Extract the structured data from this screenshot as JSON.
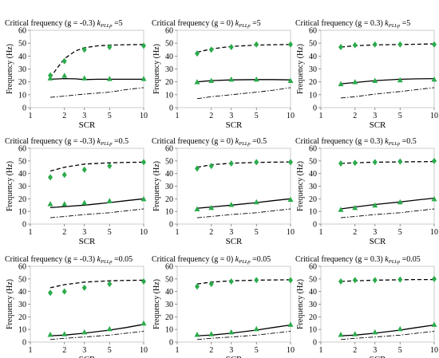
{
  "common": {
    "xlabel": "SCR",
    "ylabel": "Frequency (Hz)",
    "xticks": [
      1,
      2,
      3,
      5,
      10
    ],
    "yticks": [
      0,
      10,
      20,
      30,
      40,
      50,
      60
    ],
    "xlim": [
      1,
      10
    ],
    "ylim": [
      0,
      60
    ],
    "xscale": "log",
    "x": [
      1.5,
      2,
      3,
      5,
      10
    ],
    "colors": {
      "marker": "#2bab4c",
      "line": "#000000"
    }
  },
  "chart_data": [
    {
      "type": "line",
      "title_prefix": "Critical frequency (g = -0.3) ",
      "title_k": "k",
      "title_sub": "PLLp",
      "title_suffix": " =5",
      "xlabel": "SCR",
      "ylabel": "Frequency (Hz)",
      "series": [
        {
          "style": "dashed",
          "x": [
            1.5,
            1.7,
            2,
            2.5,
            3,
            4,
            5,
            7,
            10
          ],
          "values": [
            23,
            30,
            38,
            44,
            46.5,
            48,
            48.5,
            48.8,
            49
          ]
        },
        {
          "style": "solid",
          "x": [
            1.5,
            2,
            2.5,
            3,
            4,
            5,
            7,
            10
          ],
          "values": [
            22,
            22.5,
            22.3,
            21.8,
            22,
            22,
            22,
            22
          ]
        },
        {
          "style": "dashdot",
          "x": [
            1.5,
            2,
            3,
            5,
            7,
            10
          ],
          "values": [
            8,
            9,
            10.5,
            12,
            14,
            15.5
          ]
        },
        {
          "style": "diamond",
          "x": [
            1.5,
            2,
            3,
            5,
            10
          ],
          "values": [
            25,
            36,
            45,
            47,
            48
          ]
        },
        {
          "style": "triangle",
          "x": [
            1.5,
            2,
            3,
            5,
            10
          ],
          "values": [
            23,
            25,
            23,
            22.5,
            22.5
          ]
        }
      ]
    },
    {
      "type": "line",
      "title_prefix": "Critical frequency (g = 0) ",
      "title_k": "k",
      "title_sub": "PLLp",
      "title_suffix": " =5",
      "xlabel": "SCR",
      "ylabel": "Frequency (Hz)",
      "series": [
        {
          "style": "dashed",
          "x": [
            1.5,
            2,
            3,
            5,
            7,
            10
          ],
          "values": [
            43,
            45.5,
            47.5,
            48.5,
            48.8,
            49
          ]
        },
        {
          "style": "solid",
          "x": [
            1.5,
            2,
            3,
            5,
            7,
            10
          ],
          "values": [
            20,
            21,
            21.5,
            21.8,
            21.8,
            21.5
          ]
        },
        {
          "style": "dashdot",
          "x": [
            1.5,
            2,
            3,
            5,
            7,
            10
          ],
          "values": [
            7,
            8.5,
            10,
            12,
            13.5,
            15.5
          ]
        },
        {
          "style": "diamond",
          "x": [
            1.5,
            2,
            3,
            5,
            10
          ],
          "values": [
            42,
            45,
            47,
            49,
            49
          ]
        },
        {
          "style": "triangle",
          "x": [
            1.5,
            2,
            3,
            5,
            10
          ],
          "values": [
            20,
            21,
            22,
            22,
            21
          ]
        }
      ]
    },
    {
      "type": "line",
      "title_prefix": "Critical frequency (g = 0.3) ",
      "title_k": "k",
      "title_sub": "PLLp",
      "title_suffix": " =5",
      "xlabel": "SCR",
      "ylabel": "Frequency (Hz)",
      "series": [
        {
          "style": "dashed",
          "x": [
            1.5,
            2,
            3,
            5,
            7,
            10
          ],
          "values": [
            47,
            48,
            48.7,
            49,
            49.2,
            49.5
          ]
        },
        {
          "style": "solid",
          "x": [
            1.5,
            2,
            3,
            5,
            7,
            10
          ],
          "values": [
            18.5,
            19.5,
            21,
            22,
            22.3,
            22.5
          ]
        },
        {
          "style": "dashdot",
          "x": [
            1.5,
            2,
            3,
            5,
            7,
            10
          ],
          "values": [
            7.5,
            8.5,
            10.5,
            12.5,
            14,
            15.5
          ]
        },
        {
          "style": "diamond",
          "x": [
            1.5,
            2,
            3,
            5,
            10
          ],
          "values": [
            47,
            48.5,
            49,
            49,
            49
          ]
        },
        {
          "style": "triangle",
          "x": [
            1.5,
            2,
            3,
            5,
            10
          ],
          "values": [
            18.5,
            20,
            21,
            21.5,
            22
          ]
        }
      ]
    },
    {
      "type": "line",
      "title_prefix": "Critical frequency (g = -0.3) ",
      "title_k": "k",
      "title_sub": "PLLp",
      "title_suffix": " =0.5",
      "xlabel": "SCR",
      "ylabel": "Frequency (Hz)",
      "series": [
        {
          "style": "dashed",
          "x": [
            1.5,
            2,
            3,
            5,
            7,
            10
          ],
          "values": [
            42,
            45,
            47.5,
            48.5,
            48.8,
            49
          ]
        },
        {
          "style": "solid",
          "x": [
            1.5,
            2,
            3,
            5,
            7,
            10
          ],
          "values": [
            13,
            13.8,
            15,
            17,
            18.5,
            20
          ]
        },
        {
          "style": "dashdot",
          "x": [
            1.5,
            2,
            3,
            5,
            7,
            10
          ],
          "values": [
            5,
            6,
            7.5,
            9,
            10.5,
            12
          ]
        },
        {
          "style": "diamond",
          "x": [
            1.5,
            2,
            3,
            5,
            10
          ],
          "values": [
            37,
            39,
            43,
            46,
            49
          ]
        },
        {
          "style": "triangle",
          "x": [
            1.5,
            2,
            3,
            5,
            10
          ],
          "values": [
            16,
            16,
            17,
            18.5,
            20
          ]
        }
      ]
    },
    {
      "type": "line",
      "title_prefix": "Critical frequency (g = 0) ",
      "title_k": "k",
      "title_sub": "PLLp",
      "title_suffix": " =0.5",
      "xlabel": "SCR",
      "ylabel": "Frequency (Hz)",
      "series": [
        {
          "style": "dashed",
          "x": [
            1.5,
            2,
            3,
            5,
            7,
            10
          ],
          "values": [
            45,
            47,
            48.2,
            48.8,
            49,
            49.2
          ]
        },
        {
          "style": "solid",
          "x": [
            1.5,
            2,
            3,
            5,
            7,
            10
          ],
          "values": [
            12.5,
            13.5,
            15,
            17,
            18.5,
            20
          ]
        },
        {
          "style": "dashdot",
          "x": [
            1.5,
            2,
            3,
            5,
            7,
            10
          ],
          "values": [
            5,
            6,
            7.5,
            9,
            10.5,
            12
          ]
        },
        {
          "style": "diamond",
          "x": [
            1.5,
            2,
            3,
            5,
            10
          ],
          "values": [
            44,
            46,
            48,
            49,
            49
          ]
        },
        {
          "style": "triangle",
          "x": [
            1.5,
            2,
            3,
            5,
            10
          ],
          "values": [
            12,
            13,
            15.5,
            17.5,
            19.5
          ]
        }
      ]
    },
    {
      "type": "line",
      "title_prefix": "Critical frequency (g = 0.3) ",
      "title_k": "k",
      "title_sub": "PLLp",
      "title_suffix": " =0.5",
      "xlabel": "SCR",
      "ylabel": "Frequency (Hz)",
      "series": [
        {
          "style": "dashed",
          "x": [
            1.5,
            2,
            3,
            5,
            7,
            10
          ],
          "values": [
            48,
            48.5,
            49,
            49.2,
            49.4,
            49.5
          ]
        },
        {
          "style": "solid",
          "x": [
            1.5,
            2,
            3,
            5,
            7,
            10
          ],
          "values": [
            12,
            13.5,
            15.5,
            17.5,
            19,
            20.5
          ]
        },
        {
          "style": "dashdot",
          "x": [
            1.5,
            2,
            3,
            5,
            7,
            10
          ],
          "values": [
            5,
            6,
            7.5,
            9,
            10.5,
            12
          ]
        },
        {
          "style": "diamond",
          "x": [
            1.5,
            2,
            3,
            5,
            10
          ],
          "values": [
            48,
            48.5,
            49,
            49.5,
            50
          ]
        },
        {
          "style": "triangle",
          "x": [
            1.5,
            2,
            3,
            5,
            10
          ],
          "values": [
            11.5,
            13,
            15,
            17.5,
            20
          ]
        }
      ]
    },
    {
      "type": "line",
      "title_prefix": "Critical frequency (g = -0.3) ",
      "title_k": "k",
      "title_sub": "PLLp",
      "title_suffix": " =0.05",
      "xlabel": "SCR",
      "ylabel": "Frequency (Hz)",
      "series": [
        {
          "style": "dashed",
          "x": [
            1.5,
            2,
            3,
            5,
            7,
            10
          ],
          "values": [
            43,
            45.5,
            47.5,
            48.5,
            48.8,
            49
          ]
        },
        {
          "style": "solid",
          "x": [
            1.5,
            2,
            3,
            5,
            7,
            10
          ],
          "values": [
            5,
            5.5,
            7,
            9.5,
            11.5,
            14
          ]
        },
        {
          "style": "dashdot",
          "x": [
            1.5,
            2,
            3,
            5,
            7,
            10
          ],
          "values": [
            2,
            3,
            4,
            5.5,
            7,
            8.5
          ]
        },
        {
          "style": "diamond",
          "x": [
            1.5,
            2,
            3,
            5,
            10
          ],
          "values": [
            39,
            40,
            43,
            46,
            48
          ]
        },
        {
          "style": "triangle",
          "x": [
            1.5,
            2,
            3,
            5,
            10
          ],
          "values": [
            6,
            6.5,
            8,
            10.5,
            15
          ]
        }
      ]
    },
    {
      "type": "line",
      "title_prefix": "Critical frequency (g = 0) ",
      "title_k": "k",
      "title_sub": "PLLp",
      "title_suffix": " =0.05",
      "xlabel": "SCR",
      "ylabel": "Frequency (Hz)",
      "series": [
        {
          "style": "dashed",
          "x": [
            1.5,
            2,
            3,
            5,
            7,
            10
          ],
          "values": [
            46,
            47.5,
            48.5,
            49,
            49.2,
            49.3
          ]
        },
        {
          "style": "solid",
          "x": [
            1.5,
            2,
            3,
            5,
            7,
            10
          ],
          "values": [
            5,
            5.5,
            7,
            9.5,
            11.5,
            13.5
          ]
        },
        {
          "style": "dashdot",
          "x": [
            1.5,
            2,
            3,
            5,
            7,
            10
          ],
          "values": [
            2,
            3,
            4,
            5.5,
            7,
            8.5
          ]
        },
        {
          "style": "diamond",
          "x": [
            1.5,
            2,
            3,
            5,
            10
          ],
          "values": [
            44,
            46,
            48,
            49,
            49
          ]
        },
        {
          "style": "triangle",
          "x": [
            1.5,
            2,
            3,
            5,
            10
          ],
          "values": [
            6,
            6.5,
            8,
            10.5,
            14
          ]
        }
      ]
    },
    {
      "type": "line",
      "title_prefix": "Critical frequency (g = 0.3) ",
      "title_k": "k",
      "title_sub": "PLLp",
      "title_suffix": " =0.05",
      "xlabel": "SCR",
      "ylabel": "Frequency (Hz)",
      "series": [
        {
          "style": "dashed",
          "x": [
            1.5,
            2,
            3,
            5,
            7,
            10
          ],
          "values": [
            48,
            48.5,
            49,
            49.3,
            49.5,
            49.5
          ]
        },
        {
          "style": "solid",
          "x": [
            1.5,
            2,
            3,
            5,
            7,
            10
          ],
          "values": [
            5,
            5.5,
            7,
            9.5,
            11.5,
            13.5
          ]
        },
        {
          "style": "dashdot",
          "x": [
            1.5,
            2,
            3,
            5,
            7,
            10
          ],
          "values": [
            2,
            3,
            4,
            5.5,
            7,
            8.5
          ]
        },
        {
          "style": "diamond",
          "x": [
            1.5,
            2,
            3,
            5,
            10
          ],
          "values": [
            48,
            49,
            49,
            49.5,
            50
          ]
        },
        {
          "style": "triangle",
          "x": [
            1.5,
            2,
            3,
            5,
            10
          ],
          "values": [
            6,
            6.5,
            8,
            10.5,
            14
          ]
        }
      ]
    }
  ]
}
